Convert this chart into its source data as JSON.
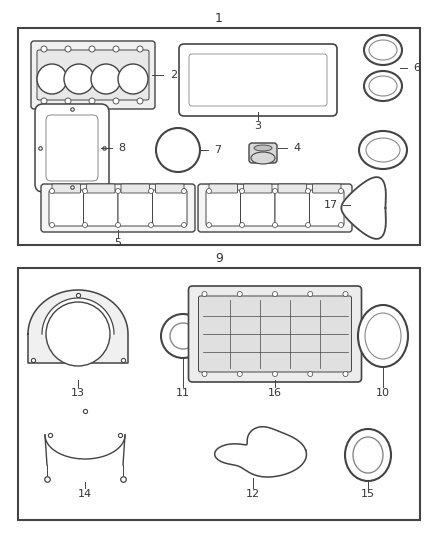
{
  "background_color": "#ffffff",
  "line_color": "#444444",
  "box1_label": "1",
  "box2_label": "9",
  "figsize": [
    4.38,
    5.33
  ],
  "dpi": 100
}
